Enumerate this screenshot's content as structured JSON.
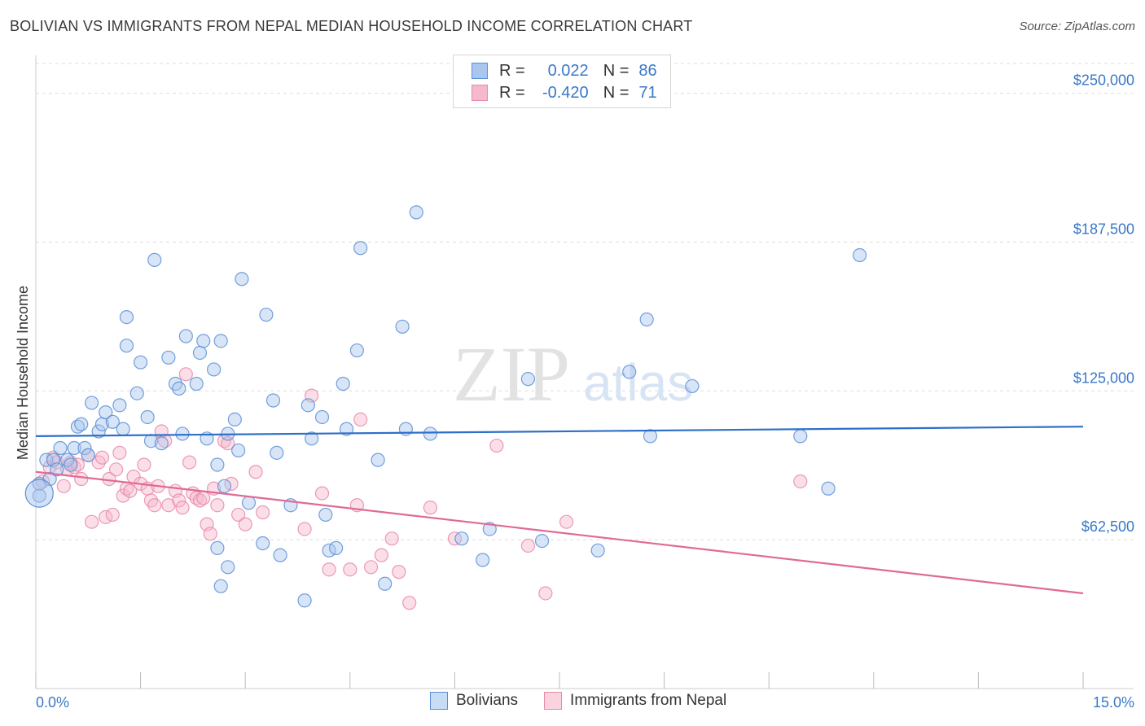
{
  "header": {
    "title": "BOLIVIAN VS IMMIGRANTS FROM NEPAL MEDIAN HOUSEHOLD INCOME CORRELATION CHART",
    "source": "Source: ZipAtlas.com"
  },
  "legend": {
    "rows": [
      {
        "r_label": "R =",
        "r_value": "0.022",
        "n_label": "N =",
        "n_value": "86"
      },
      {
        "r_label": "R =",
        "r_value": "-0.420",
        "n_label": "N =",
        "n_value": "71"
      }
    ]
  },
  "watermark": {
    "zip": "ZIP",
    "atlas": "atlas"
  },
  "colors": {
    "blue_fill": "#a8c6ee",
    "blue_stroke": "#5b8fd6",
    "blue_line": "#2e6fc8",
    "pink_fill": "#f6b9cc",
    "pink_stroke": "#e889a8",
    "pink_line": "#e06a96",
    "tick_label": "#3a78c9",
    "grid": "#dddddd"
  },
  "chart_data": {
    "type": "scatter",
    "title": "BOLIVIAN VS IMMIGRANTS FROM NEPAL MEDIAN HOUSEHOLD INCOME CORRELATION CHART",
    "xlabel": "",
    "ylabel": "Median Household Income",
    "xlim": [
      0,
      15
    ],
    "ylim": [
      0,
      262500
    ],
    "x_tick_labels": [
      "0.0%",
      "15.0%"
    ],
    "y_ticks": [
      62500,
      125000,
      187500,
      250000
    ],
    "y_tick_labels": [
      "$62,500",
      "$125,000",
      "$187,500",
      "$250,000"
    ],
    "grid": true,
    "legend_position": "bottom",
    "series": [
      {
        "name": "Bolivians",
        "r": 0.022,
        "n": 86,
        "trend": [
          [
            0,
            106000
          ],
          [
            15,
            110000
          ]
        ],
        "points": [
          [
            0.05,
            86000
          ],
          [
            0.05,
            81000
          ],
          [
            0.15,
            96000
          ],
          [
            0.2,
            88000
          ],
          [
            0.25,
            96000
          ],
          [
            0.35,
            101000
          ],
          [
            0.45,
            96000
          ],
          [
            0.5,
            94000
          ],
          [
            0.55,
            101000
          ],
          [
            0.6,
            110000
          ],
          [
            0.65,
            111000
          ],
          [
            0.7,
            101000
          ],
          [
            0.75,
            98000
          ],
          [
            0.8,
            120000
          ],
          [
            0.9,
            108000
          ],
          [
            0.95,
            111000
          ],
          [
            1.0,
            116000
          ],
          [
            1.1,
            112000
          ],
          [
            1.2,
            119000
          ],
          [
            1.25,
            109000
          ],
          [
            1.3,
            156000
          ],
          [
            1.3,
            144000
          ],
          [
            1.45,
            124000
          ],
          [
            1.5,
            137000
          ],
          [
            1.6,
            114000
          ],
          [
            1.65,
            104000
          ],
          [
            1.7,
            180000
          ],
          [
            1.8,
            103000
          ],
          [
            1.9,
            139000
          ],
          [
            2.0,
            128000
          ],
          [
            2.05,
            126000
          ],
          [
            2.1,
            107000
          ],
          [
            2.15,
            148000
          ],
          [
            2.3,
            128000
          ],
          [
            2.35,
            141000
          ],
          [
            2.4,
            146000
          ],
          [
            2.45,
            105000
          ],
          [
            2.55,
            134000
          ],
          [
            2.6,
            94000
          ],
          [
            2.65,
            146000
          ],
          [
            2.7,
            85000
          ],
          [
            2.75,
            107000
          ],
          [
            2.85,
            113000
          ],
          [
            2.9,
            100000
          ],
          [
            2.6,
            59000
          ],
          [
            2.65,
            43000
          ],
          [
            2.75,
            51000
          ],
          [
            2.95,
            172000
          ],
          [
            3.05,
            78000
          ],
          [
            3.25,
            61000
          ],
          [
            3.3,
            157000
          ],
          [
            3.4,
            121000
          ],
          [
            3.45,
            99000
          ],
          [
            3.5,
            56000
          ],
          [
            3.65,
            77000
          ],
          [
            3.85,
            37000
          ],
          [
            3.9,
            119000
          ],
          [
            3.95,
            105000
          ],
          [
            4.1,
            114000
          ],
          [
            4.15,
            73000
          ],
          [
            4.2,
            58000
          ],
          [
            4.3,
            59000
          ],
          [
            4.4,
            128000
          ],
          [
            4.45,
            109000
          ],
          [
            4.6,
            142000
          ],
          [
            4.65,
            185000
          ],
          [
            4.9,
            96000
          ],
          [
            5.0,
            44000
          ],
          [
            5.25,
            152000
          ],
          [
            5.3,
            109000
          ],
          [
            5.45,
            200000
          ],
          [
            5.65,
            107000
          ],
          [
            6.1,
            63000
          ],
          [
            6.4,
            54000
          ],
          [
            6.5,
            67000
          ],
          [
            7.05,
            130000
          ],
          [
            7.25,
            62000
          ],
          [
            8.05,
            58000
          ],
          [
            8.5,
            133000
          ],
          [
            8.75,
            155000
          ],
          [
            8.8,
            106000
          ],
          [
            9.4,
            127000
          ],
          [
            10.95,
            106000
          ],
          [
            11.35,
            84000
          ],
          [
            11.8,
            182000
          ],
          [
            0.3,
            92000
          ]
        ]
      },
      {
        "name": "Immigrants from Nepal",
        "r": -0.42,
        "n": 71,
        "trend": [
          [
            0,
            91000
          ],
          [
            15,
            40000
          ]
        ],
        "points": [
          [
            0.1,
            87000
          ],
          [
            0.2,
            93000
          ],
          [
            0.25,
            97000
          ],
          [
            0.3,
            95000
          ],
          [
            0.4,
            85000
          ],
          [
            0.45,
            92000
          ],
          [
            0.5,
            95000
          ],
          [
            0.55,
            93000
          ],
          [
            0.6,
            94000
          ],
          [
            0.75,
            98000
          ],
          [
            0.8,
            70000
          ],
          [
            0.9,
            95000
          ],
          [
            0.95,
            97000
          ],
          [
            1.0,
            72000
          ],
          [
            1.05,
            88000
          ],
          [
            1.1,
            73000
          ],
          [
            1.15,
            92000
          ],
          [
            1.2,
            99000
          ],
          [
            1.25,
            81000
          ],
          [
            1.3,
            84000
          ],
          [
            1.35,
            83000
          ],
          [
            1.4,
            89000
          ],
          [
            1.5,
            86000
          ],
          [
            1.55,
            94000
          ],
          [
            1.6,
            84000
          ],
          [
            1.65,
            79000
          ],
          [
            1.7,
            77000
          ],
          [
            1.75,
            85000
          ],
          [
            1.8,
            108000
          ],
          [
            1.85,
            104000
          ],
          [
            1.9,
            77000
          ],
          [
            2.0,
            83000
          ],
          [
            2.05,
            79000
          ],
          [
            2.1,
            76000
          ],
          [
            2.15,
            132000
          ],
          [
            2.2,
            95000
          ],
          [
            2.25,
            82000
          ],
          [
            2.3,
            80000
          ],
          [
            2.35,
            79000
          ],
          [
            2.4,
            80000
          ],
          [
            2.45,
            69000
          ],
          [
            2.5,
            65000
          ],
          [
            2.55,
            84000
          ],
          [
            2.6,
            77000
          ],
          [
            2.7,
            104000
          ],
          [
            2.75,
            103000
          ],
          [
            2.8,
            86000
          ],
          [
            2.9,
            73000
          ],
          [
            3.0,
            69000
          ],
          [
            3.15,
            91000
          ],
          [
            3.25,
            74000
          ],
          [
            3.85,
            67000
          ],
          [
            3.95,
            123000
          ],
          [
            4.1,
            82000
          ],
          [
            4.2,
            50000
          ],
          [
            4.5,
            50000
          ],
          [
            4.6,
            77000
          ],
          [
            4.65,
            113000
          ],
          [
            4.8,
            51000
          ],
          [
            4.95,
            56000
          ],
          [
            5.1,
            63000
          ],
          [
            5.2,
            49000
          ],
          [
            5.35,
            36000
          ],
          [
            5.65,
            76000
          ],
          [
            6.0,
            63000
          ],
          [
            6.6,
            102000
          ],
          [
            7.05,
            60000
          ],
          [
            7.3,
            40000
          ],
          [
            7.6,
            70000
          ],
          [
            10.95,
            87000
          ],
          [
            0.65,
            88000
          ]
        ]
      }
    ]
  },
  "bottom_legend": [
    {
      "label": "Bolivians"
    },
    {
      "label": "Immigrants from Nepal"
    }
  ]
}
